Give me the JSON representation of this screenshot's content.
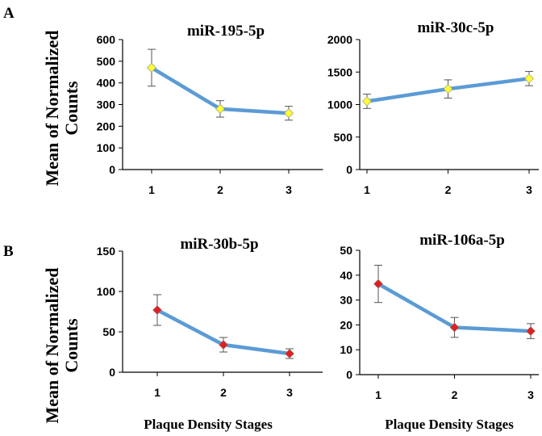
{
  "panels": {
    "A": "A",
    "B": "B"
  },
  "y_axis_label_lines": [
    "Mean of Normalized",
    "Counts"
  ],
  "x_axis_label": "Plaque Density Stages",
  "colors": {
    "line": "#5b9bd5",
    "marker_A": "#ffff33",
    "marker_B": "#e02020",
    "error_bar": "#555555",
    "axis": "#000000"
  },
  "chart_data": [
    {
      "type": "line",
      "panel": "A",
      "title": "miR-195-5p",
      "x": [
        1,
        2,
        3
      ],
      "y": [
        470,
        280,
        260
      ],
      "error": [
        85,
        38,
        32
      ],
      "xticks": [
        "1",
        "2",
        "3"
      ],
      "yticks": [
        0,
        100,
        200,
        300,
        400,
        500,
        600
      ],
      "ylim": [
        0,
        600
      ],
      "marker": "diamond",
      "marker_color": "#ffff33"
    },
    {
      "type": "line",
      "panel": "A",
      "title": "miR-30c-5p",
      "x": [
        1,
        2,
        3
      ],
      "y": [
        1050,
        1240,
        1400
      ],
      "error": [
        110,
        140,
        110
      ],
      "xticks": [
        "1",
        "2",
        "3"
      ],
      "yticks": [
        0,
        500,
        1000,
        1500,
        2000
      ],
      "ylim": [
        0,
        2000
      ],
      "marker": "diamond",
      "marker_color": "#ffff33"
    },
    {
      "type": "line",
      "panel": "B",
      "title": "miR-30b-5p",
      "x": [
        1,
        2,
        3
      ],
      "y": [
        77,
        34,
        23
      ],
      "error": [
        19,
        9,
        6
      ],
      "xticks": [
        "1",
        "2",
        "3"
      ],
      "yticks": [
        0,
        50,
        100,
        150
      ],
      "ylim": [
        0,
        150
      ],
      "marker": "diamond",
      "marker_color": "#e02020"
    },
    {
      "type": "line",
      "panel": "B",
      "title": "miR-106a-5p",
      "x": [
        1,
        2,
        3
      ],
      "y": [
        36.5,
        19,
        17.5
      ],
      "error": [
        7.5,
        4,
        3
      ],
      "xticks": [
        "1",
        "2",
        "3"
      ],
      "yticks": [
        0,
        10,
        20,
        30,
        40,
        50
      ],
      "ylim": [
        0,
        50
      ],
      "marker": "diamond",
      "marker_color": "#e02020"
    }
  ]
}
